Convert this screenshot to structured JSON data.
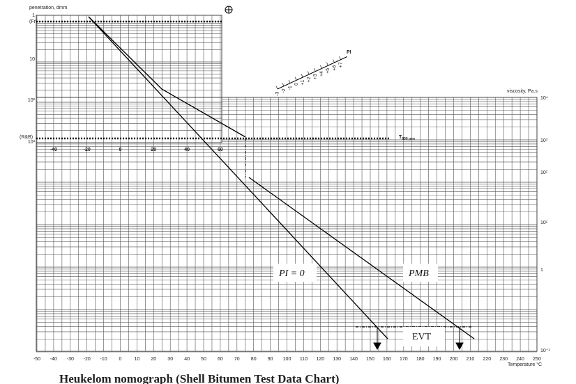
{
  "header": {
    "title": "Heukelom nomograph (Shell Bitumen Test Data Chart)"
  },
  "axes": {
    "penetration": "penetration, dmm",
    "viscosity": "viscosity, Pa.s",
    "temperature": "Temperature °C",
    "pi": "PI",
    "fr": "(Fr)",
    "rb": "(R&B)",
    "t800": "T",
    "t800_sub": "800 pen"
  },
  "temperature_ticks": [
    "-50",
    "-40",
    "-30",
    "-20",
    "-10",
    "0",
    "10",
    "20",
    "30",
    "40",
    "50",
    "60",
    "70",
    "80",
    "90",
    "100",
    "110",
    "120",
    "130",
    "140",
    "150",
    "160",
    "170",
    "180",
    "190",
    "200",
    "210",
    "220",
    "230",
    "240",
    "250"
  ],
  "upper_ticks": [
    "-40",
    "-20",
    "0",
    "20",
    "40",
    "60"
  ],
  "penetration_ticks": [
    "1",
    "10",
    "10²",
    "10³"
  ],
  "viscosity_ticks": [
    "10⁴",
    "10³",
    "10²",
    "10¹",
    "1",
    "10⁻¹"
  ],
  "pi_ticks": [
    "-3",
    "-2",
    "-1",
    "0",
    "+1",
    "+2",
    "+3",
    "+4",
    "+5",
    "+6",
    "+7"
  ],
  "annotations": {
    "pi0": "PI = 0",
    "pmb": "PMB",
    "evt": "EVT"
  }
}
